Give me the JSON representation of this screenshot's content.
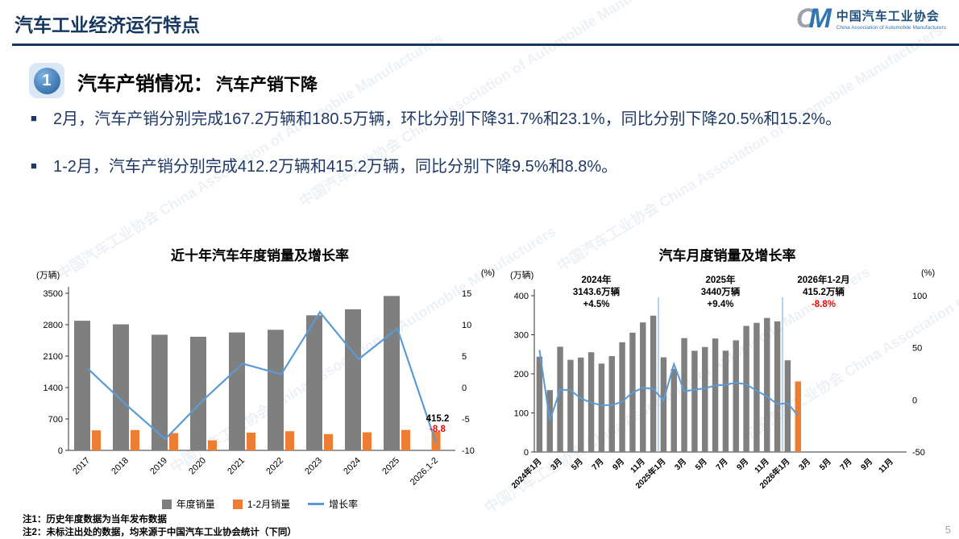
{
  "page": {
    "title": "汽车工业经济运行特点",
    "page_number": "5",
    "watermark": "中国汽车工业协会 China Association of Automobile Manufacturers",
    "logo": {
      "mark_c": "C",
      "mark_m": "M",
      "name_cn": "中国汽车工业协会",
      "name_en": "China Association of Automobile Manufacturers"
    }
  },
  "section": {
    "number": "1",
    "title": "汽车产销情况：",
    "subtitle": "汽车产销下降"
  },
  "bullet_marker": "■",
  "bullets": [
    "2月，汽车产销分别完成167.2万辆和180.5万辆，环比分别下降31.7%和23.1%，同比分别下降20.5%和15.2%。",
    "1-2月，汽车产销分别完成412.2万辆和415.2万辆，同比分别下降9.5%和8.8%。"
  ],
  "notes": [
    "注1：历史年度数据为当年发布数据",
    "注2：未标注出处的数据，均来源于中国汽车工业协会统计（下同）"
  ],
  "colors": {
    "bar_gray": "#7F7F7F",
    "bar_orange": "#ED7D31",
    "line_blue": "#5B9BD5",
    "accent_navy": "#17375E",
    "text_navy": "#1F3864",
    "red": "#FF0000",
    "separator_blue": "#9DC3E6"
  },
  "chart_data": [
    {
      "type": "bar",
      "title": "近十年汽车年度销量及增长率",
      "unit_left": "(万辆)",
      "unit_right": "(%)",
      "categories": [
        "2017",
        "2018",
        "2019",
        "2020",
        "2021",
        "2022",
        "2023",
        "2024",
        "2025",
        "2026.1-2"
      ],
      "series": [
        {
          "name": "年度销量",
          "kind": "bar",
          "axis": "left",
          "color": "#7F7F7F",
          "values": [
            2887.9,
            2808.1,
            2576.9,
            2531.1,
            2627.5,
            2686.4,
            3009.4,
            3143.6,
            3440,
            null
          ]
        },
        {
          "name": "1-2月销量",
          "kind": "bar",
          "axis": "left",
          "color": "#ED7D31",
          "values": [
            445.9,
            452.7,
            385.2,
            223.8,
            395.8,
            426.8,
            362.9,
            402.6,
            455.2,
            415.2
          ]
        },
        {
          "name": "增长率",
          "kind": "line",
          "axis": "right",
          "color": "#5B9BD5",
          "values": [
            3.0,
            -2.8,
            -8.2,
            -1.9,
            3.8,
            2.1,
            12.0,
            4.5,
            9.4,
            -8.8
          ]
        }
      ],
      "ylim_left": [
        0,
        3500
      ],
      "yticks_left": [
        0,
        700,
        1400,
        2100,
        2800,
        3500
      ],
      "ylim_right": [
        -10,
        15
      ],
      "yticks_right": [
        -10,
        -5,
        0,
        5,
        10,
        15
      ],
      "end_labels": {
        "value": "415.2",
        "growth": "-8.8"
      },
      "grid": false,
      "legend_position": "bottom"
    },
    {
      "type": "bar",
      "title": "汽车月度销量及增长率",
      "unit_left": "(万辆)",
      "unit_right": "(%)",
      "x_slots": 36,
      "tick_every": 2,
      "x_tick_labels": [
        "2024年1月",
        "3月",
        "5月",
        "7月",
        "9月",
        "11月",
        "2025年1月",
        "3月",
        "5月",
        "7月",
        "9月",
        "11月",
        "2026年1月",
        "3月",
        "5月",
        "7月",
        "9月",
        "11月"
      ],
      "bars": {
        "name": "月度销量",
        "color": "#7F7F7F",
        "highlight_index": 25,
        "highlight_color": "#ED7D31",
        "values": [
          243.9,
          158.4,
          269.4,
          235.9,
          241.7,
          255.2,
          226.2,
          245.3,
          280.9,
          305.3,
          331.6,
          348.9,
          242.3,
          212.9,
          291.5,
          259.0,
          268.6,
          290.4,
          259.3,
          285.7,
          322.6,
          330.5,
          343.0,
          334.2,
          234.7,
          180.5
        ]
      },
      "line": {
        "name": "增长率",
        "color": "#5B9BD5",
        "values": [
          47.9,
          -19.9,
          9.9,
          9.3,
          1.5,
          -2.7,
          -5.2,
          -5.0,
          -1.7,
          7.0,
          11.7,
          10.5,
          -0.6,
          34.4,
          8.2,
          9.8,
          11.2,
          13.8,
          14.6,
          16.5,
          14.9,
          8.8,
          3.4,
          -4.2,
          -3.1,
          -15.2
        ]
      },
      "annotations": [
        {
          "lines": [
            "2024年",
            "3143.6万辆",
            "+4.5%"
          ],
          "last_line_red": false
        },
        {
          "lines": [
            "2025年",
            "3440万辆",
            "+9.4%"
          ],
          "last_line_red": false
        },
        {
          "lines": [
            "2026年1-2月",
            "415.2万辆",
            "-8.8%"
          ],
          "last_line_red": true
        }
      ],
      "separators_after": [
        12,
        24
      ],
      "ylim_left": [
        0,
        400
      ],
      "yticks_left": [
        0,
        100,
        200,
        300,
        400
      ],
      "ylim_right": [
        -50,
        100
      ],
      "yticks_right": [
        -50,
        0,
        50,
        100
      ],
      "grid": false
    }
  ]
}
